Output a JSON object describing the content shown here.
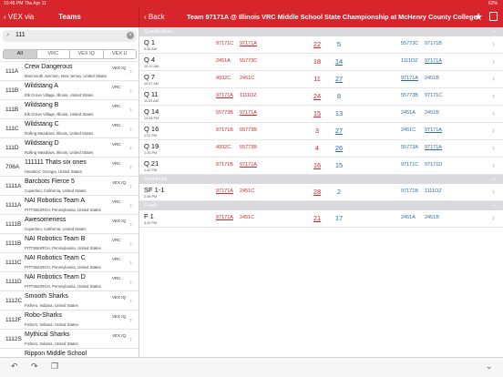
{
  "status": {
    "left": "10:45 PM   Thu Apr 11",
    "right": "62%"
  },
  "left_nav": {
    "back": "VEX via",
    "title": "Teams"
  },
  "right_nav": {
    "back": "Back",
    "title": "Team 97171A @ Illinois VRC Middle School State Championship at McHenry County College"
  },
  "search": {
    "value": "111"
  },
  "filters": [
    "All",
    "VRC",
    "VEX IQ",
    "VEX U"
  ],
  "teams": [
    {
      "num": "111A",
      "name": "Crew Dangerous",
      "prog": "VEX IQ",
      "loc": "Monmouth Junction, New Jersey, United States"
    },
    {
      "num": "111B",
      "name": "Wildstang A",
      "prog": "VRC",
      "loc": "Elk Grove Village, Illinois, United States"
    },
    {
      "num": "111B",
      "name": "Wildstang B",
      "prog": "VRC",
      "loc": "Elk Grove Village, Illinois, United States"
    },
    {
      "num": "111C",
      "name": "Wildstang C",
      "prog": "VRC",
      "loc": "Rolling Meadows, Illinois, United States"
    },
    {
      "num": "111D",
      "name": "Wildstang D",
      "prog": "VRC",
      "loc": "Rolling Meadows, Illinois, United States"
    },
    {
      "num": "706A",
      "name": "111111 Thats six ones",
      "prog": "VRC",
      "loc": "Hamilton, Georgia, United States"
    },
    {
      "num": "1111A",
      "name": "Barcbots Fierce 5",
      "prog": "VEX IQ",
      "loc": "Cupertino, California, United States"
    },
    {
      "num": "1111A",
      "name": "NAI Robotics Team A",
      "prog": "VRC",
      "loc": "PITTSBURGH, Pennsylvania, United States"
    },
    {
      "num": "1111B",
      "name": "Awesomeness",
      "prog": "VEX IQ",
      "loc": "Cupertino, California, United States"
    },
    {
      "num": "1111B",
      "name": "NAI Robotics Team B",
      "prog": "VRC",
      "loc": "PITTSBURGH, Pennsylvania, United States"
    },
    {
      "num": "1111C",
      "name": "NAI Robotics Team C",
      "prog": "VRC",
      "loc": "PITTSBURGH, Pennsylvania, United States"
    },
    {
      "num": "1111D",
      "name": "NAI Robotics Team D",
      "prog": "VRC",
      "loc": "PITTSBURGH, Pennsylvania, United States"
    },
    {
      "num": "1112C",
      "name": "Smooth Sharks",
      "prog": "VEX IQ",
      "loc": "Fishers, Indiana, United States"
    },
    {
      "num": "1112F",
      "name": "Robo-Sharks",
      "prog": "VEX IQ",
      "loc": "Fishers, Indiana, United States"
    },
    {
      "num": "1112S",
      "name": "Mythical Sharks",
      "prog": "VEX IQ",
      "loc": "Fishers, Indiana, United States"
    },
    {
      "num": "",
      "name": "Rippon Middle School",
      "prog": "",
      "loc": ""
    }
  ],
  "sections": [
    {
      "label": "Qualification",
      "matches": [
        {
          "name": "Q 1",
          "time": "9:46 AM",
          "red": [
            "97171C",
            "97171A"
          ],
          "rs": "22",
          "bs": "5",
          "blue": [
            "55773C",
            "97171B"
          ],
          "win": "red"
        },
        {
          "name": "Q 4",
          "time": "10:12 AM",
          "red": [
            "2451A",
            "55773C"
          ],
          "rs": "18",
          "bs": "14",
          "blue": [
            "1111OZ",
            "97171A"
          ],
          "win": "blue"
        },
        {
          "name": "Q 7",
          "time": "10:47 AM",
          "red": [
            "4932C",
            "2451C"
          ],
          "rs": "11",
          "bs": "27",
          "blue": [
            "97171A",
            "2451B"
          ],
          "win": "blue"
        },
        {
          "name": "Q 11",
          "time": "11:33 AM",
          "red": [
            "97171A",
            "1111OZ"
          ],
          "rs": "24",
          "bs": "8",
          "blue": [
            "55773B",
            "97171C"
          ],
          "win": "red"
        },
        {
          "name": "Q 14",
          "time": "12:08 PM",
          "red": [
            "55773B",
            "97171A"
          ],
          "rs": "15",
          "bs": "13",
          "blue": [
            "2451A",
            "2451B"
          ],
          "win": "red"
        },
        {
          "name": "Q 16",
          "time": "1:02 PM",
          "red": [
            "97171B",
            "55773B"
          ],
          "rs": "3",
          "bs": "27",
          "blue": [
            "2451C",
            "97171A"
          ],
          "win": "blue"
        },
        {
          "name": "Q 19",
          "time": "1:25 PM",
          "red": [
            "4932C",
            "55773B"
          ],
          "rs": "4",
          "bs": "26",
          "blue": [
            "55773A",
            "97171A"
          ],
          "win": "blue"
        },
        {
          "name": "Q 21",
          "time": "1:42 PM",
          "red": [
            "97171B",
            "97171A"
          ],
          "rs": "16",
          "bs": "15",
          "blue": [
            "97171C",
            "97171D"
          ],
          "win": "red"
        }
      ]
    },
    {
      "label": "Semifinals",
      "matches": [
        {
          "name": "SF 1-1",
          "time": "2:38 PM",
          "red": [
            "97171A",
            "2451C"
          ],
          "rs": "28",
          "bs": "2",
          "blue": [
            "97171B",
            "1111OZ"
          ],
          "win": "red"
        }
      ]
    },
    {
      "label": "Finals",
      "matches": [
        {
          "name": "F 1",
          "time": "3:49 PM",
          "red": [
            "97171A",
            "2451C"
          ],
          "rs": "21",
          "bs": "17",
          "blue": [
            "2451A",
            "2451B"
          ],
          "win": "red"
        }
      ]
    }
  ],
  "highlight_team": "97171A",
  "colors": {
    "brand": "#d8242b",
    "red": "#d8242b",
    "blue": "#2a6ea8"
  }
}
